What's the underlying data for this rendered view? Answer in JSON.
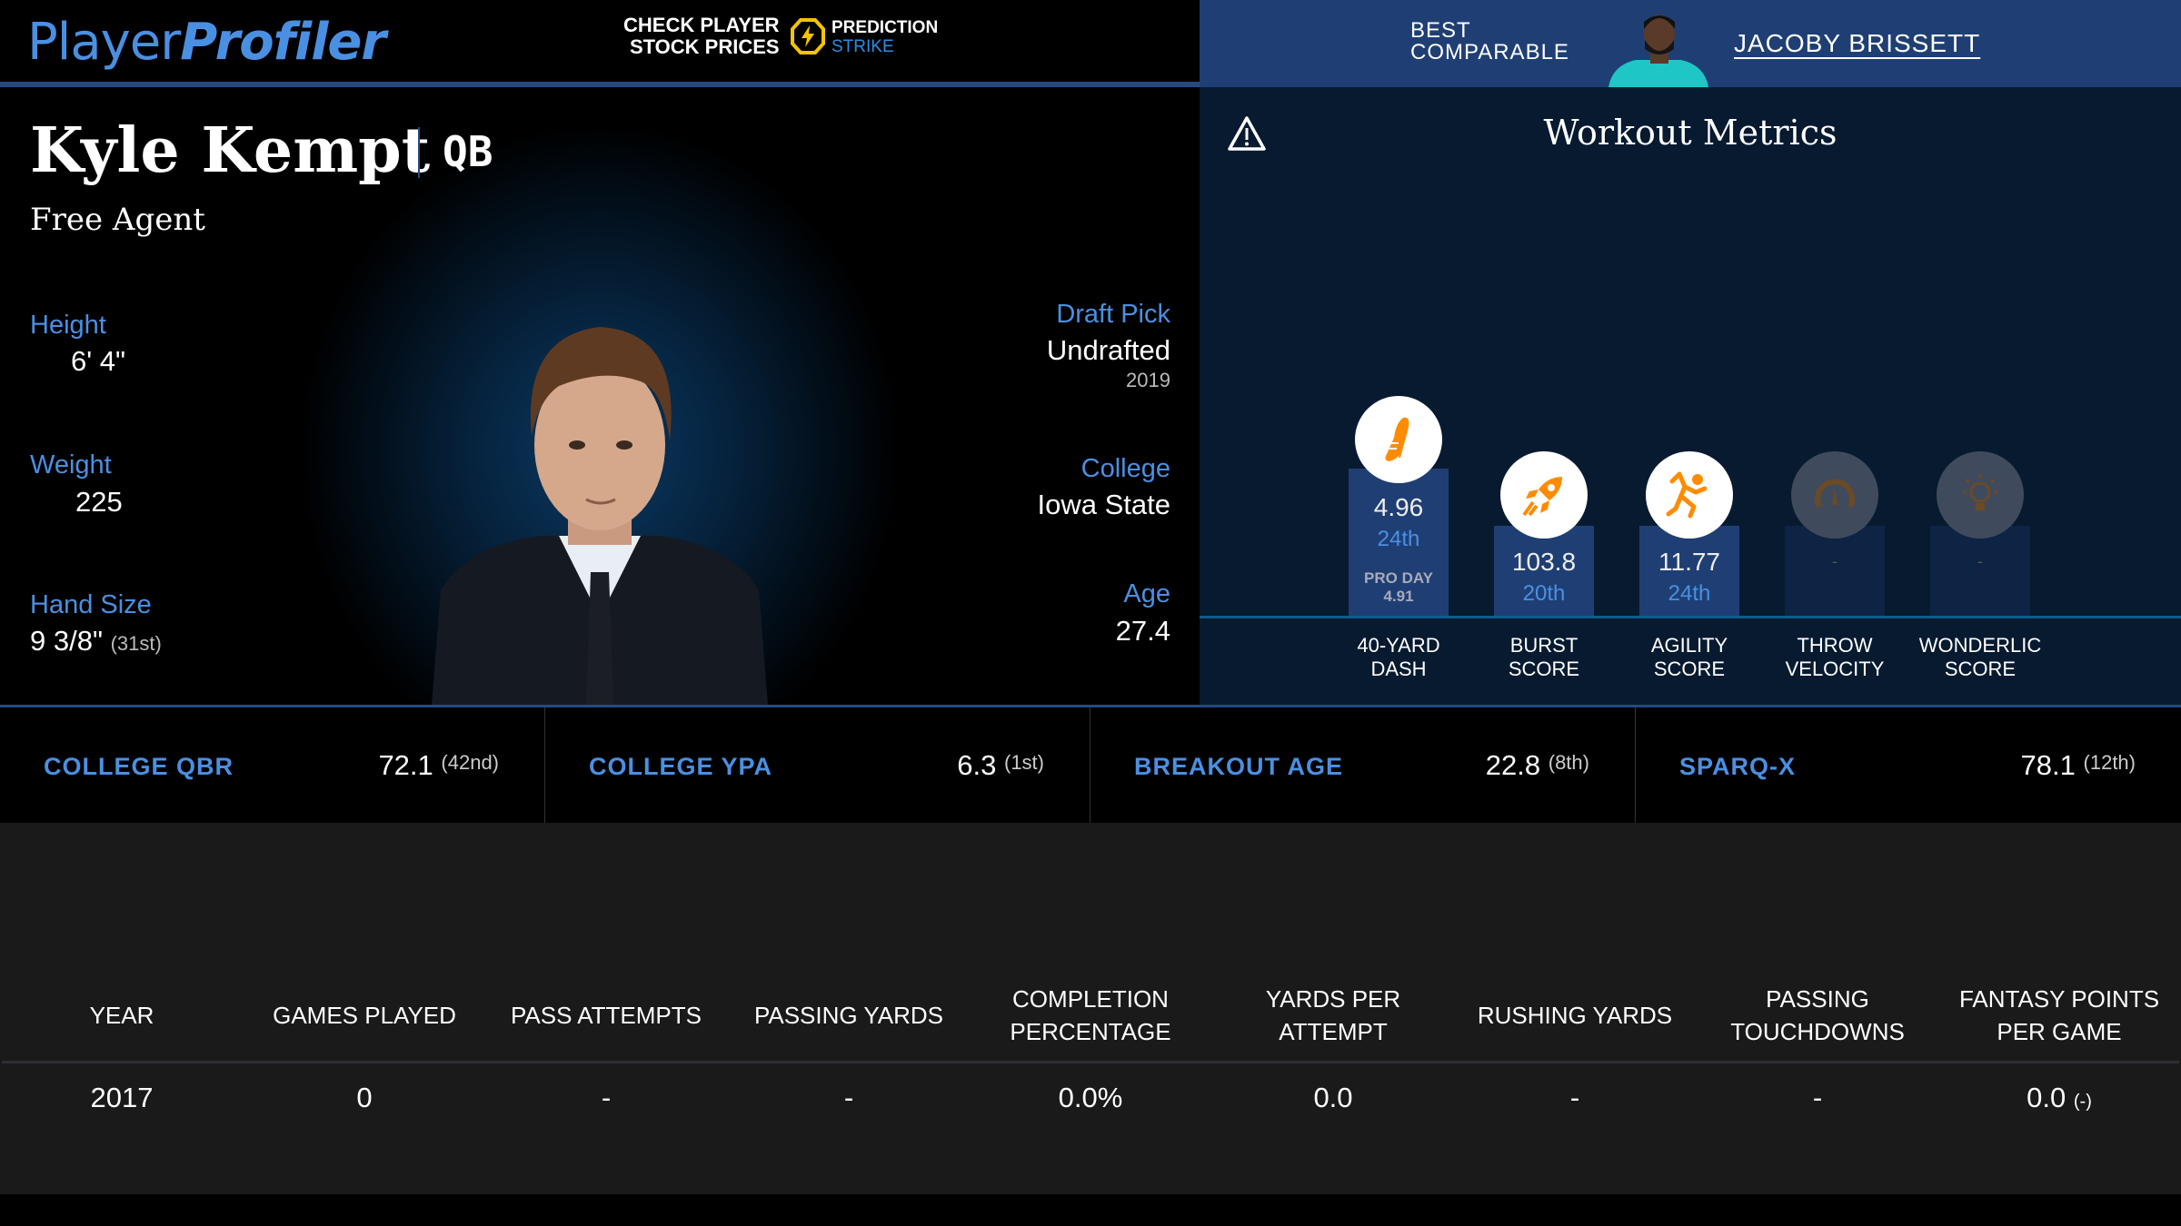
{
  "header": {
    "logo_a": "Player",
    "logo_b": "Profiler",
    "promo_line1": "CHECK PLAYER",
    "promo_line2": "STOCK PRICES",
    "promo_brand1": "PREDICTION",
    "promo_brand2": "STRIKE",
    "best_line1": "BEST",
    "best_line2": "COMPARABLE",
    "comparable_name": "JACOBY BRISSETT"
  },
  "player": {
    "name": "Kyle Kempt",
    "position": "QB",
    "team": "Free Agent",
    "height_label": "Height",
    "height": "6' 4\"",
    "weight_label": "Weight",
    "weight": "225",
    "hand_label": "Hand Size",
    "hand": "9 3/8\"",
    "hand_rank": "(31st)",
    "draft_label": "Draft Pick",
    "draft": "Undrafted",
    "draft_year": "2019",
    "college_label": "College",
    "college": "Iowa State",
    "age_label": "Age",
    "age": "27.4"
  },
  "workout": {
    "title": "Workout Metrics",
    "metrics": [
      {
        "label1": "40-YARD",
        "label2": "DASH",
        "value": "4.96",
        "rank": "24th",
        "pro_label": "PRO DAY",
        "pro_value": "4.91",
        "icon": "shoe-icon",
        "percentile": 24
      },
      {
        "label1": "BURST",
        "label2": "SCORE",
        "value": "103.8",
        "rank": "20th",
        "icon": "rocket-icon",
        "percentile": 20
      },
      {
        "label1": "AGILITY",
        "label2": "SCORE",
        "value": "11.77",
        "rank": "24th",
        "icon": "runner-icon",
        "percentile": 24
      },
      {
        "label1": "THROW",
        "label2": "VELOCITY",
        "value": "-",
        "icon": "speedometer-icon"
      },
      {
        "label1": "WONDERLIC",
        "label2": "SCORE",
        "value": "-",
        "icon": "lightbulb-icon"
      }
    ],
    "accent": "#ff8c00"
  },
  "stats": [
    {
      "label": "COLLEGE QBR",
      "value": "72.1",
      "rank": "(42nd)"
    },
    {
      "label": "COLLEGE YPA",
      "value": "6.3",
      "rank": "(1st)"
    },
    {
      "label": "BREAKOUT AGE",
      "value": "22.8",
      "rank": "(8th)"
    },
    {
      "label": "SPARQ-X",
      "value": "78.1",
      "rank": "(12th)"
    }
  ],
  "table": {
    "headers": [
      "YEAR",
      "GAMES PLAYED",
      "PASS ATTEMPTS",
      "PASSING YARDS",
      "COMPLETION PERCENTAGE",
      "YARDS PER ATTEMPT",
      "RUSHING YARDS",
      "PASSING TOUCHDOWNS",
      "FANTASY POINTS PER GAME"
    ],
    "rows": [
      [
        "2017",
        "0",
        "-",
        "-",
        "0.0%",
        "0.0",
        "-",
        "-",
        "0.0"
      ]
    ],
    "fp_rank": "(-)"
  }
}
